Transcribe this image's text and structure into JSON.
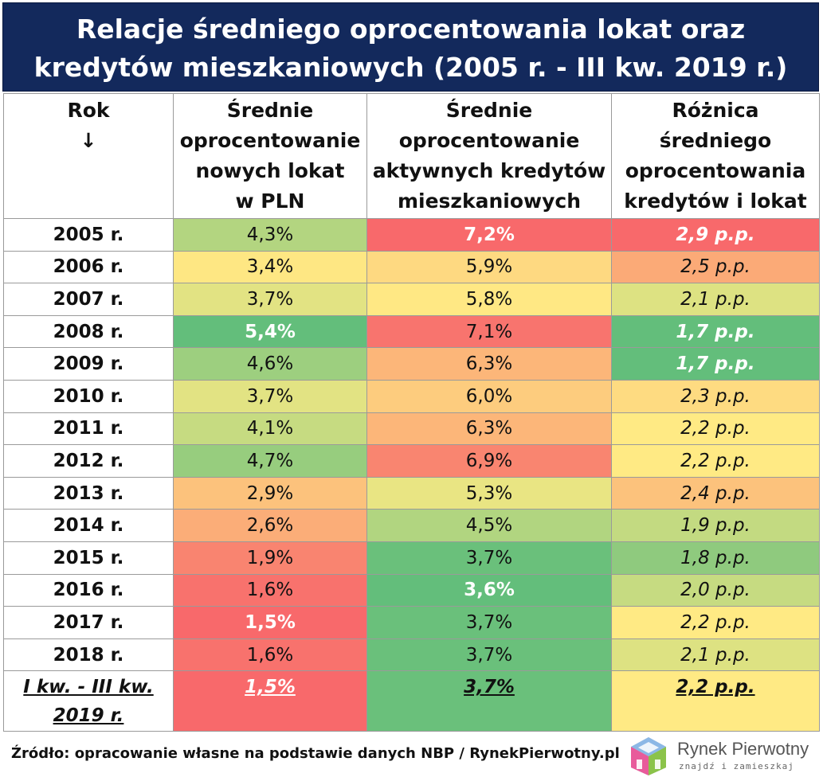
{
  "title": {
    "line1": "Relacje średniego oprocentowania lokat oraz",
    "line2": "kredytów mieszkaniowych (2005 r. - III kw. 2019 r.)"
  },
  "headers": {
    "col1_line1": "Rok",
    "col1_line2": "↓",
    "col2_line1": "Średnie",
    "col2_line2": "oprocentowanie",
    "col2_line3": "nowych lokat",
    "col2_line4": "w PLN",
    "col3_line1": "Średnie",
    "col3_line2": "oprocentowanie",
    "col3_line3": "aktywnych kredytów",
    "col3_line4": "mieszkaniowych",
    "col4_line1": "Różnica",
    "col4_line2": "średniego",
    "col4_line3": "oprocentowania",
    "col4_line4": "kredytów i lokat"
  },
  "chart_data": {
    "type": "table",
    "title": "Relacje średniego oprocentowania lokat oraz kredytów mieszkaniowych (2005 r. - III kw. 2019 r.)",
    "columns": [
      "Rok",
      "Średnie oprocentowanie nowych lokat w PLN",
      "Średnie oprocentowanie aktywnych kredytów mieszkaniowych",
      "Różnica średniego oprocentowania kredytów i lokat"
    ],
    "rows": [
      {
        "year": "2005 r.",
        "deposit": "4,3%",
        "credit": "7,2%",
        "diff": "2,9 p.p.",
        "deposit_color": "#b3d580",
        "credit_color": "#f8696b",
        "diff_color": "#f8696b",
        "deposit_strong": false,
        "credit_strong": true,
        "diff_strong": true
      },
      {
        "year": "2006 r.",
        "deposit": "3,4%",
        "credit": "5,9%",
        "diff": "2,5 p.p.",
        "deposit_color": "#fee783",
        "credit_color": "#fed981",
        "diff_color": "#fbaa77",
        "deposit_strong": false,
        "credit_strong": false,
        "diff_strong": false
      },
      {
        "year": "2007 r.",
        "deposit": "3,7%",
        "credit": "5,8%",
        "diff": "2,1 p.p.",
        "deposit_color": "#e2e383",
        "credit_color": "#ffe884",
        "diff_color": "#dde282",
        "deposit_strong": false,
        "credit_strong": false,
        "diff_strong": false
      },
      {
        "year": "2008 r.",
        "deposit": "5,4%",
        "credit": "7,1%",
        "diff": "1,7 p.p.",
        "deposit_color": "#63be7b",
        "credit_color": "#f8746e",
        "diff_color": "#63be7b",
        "deposit_strong": true,
        "credit_strong": false,
        "diff_strong": true
      },
      {
        "year": "2009 r.",
        "deposit": "4,6%",
        "credit": "6,3%",
        "diff": "1,7 p.p.",
        "deposit_color": "#9dcf7f",
        "credit_color": "#fcb679",
        "diff_color": "#63be7b",
        "deposit_strong": false,
        "credit_strong": false,
        "diff_strong": true
      },
      {
        "year": "2010 r.",
        "deposit": "3,7%",
        "credit": "6,0%",
        "diff": "2,3 p.p.",
        "deposit_color": "#e2e383",
        "credit_color": "#fdcc7e",
        "diff_color": "#fedb81",
        "deposit_strong": false,
        "credit_strong": false,
        "diff_strong": false
      },
      {
        "year": "2011 r.",
        "deposit": "4,1%",
        "credit": "6,3%",
        "diff": "2,2 p.p.",
        "deposit_color": "#c6db81",
        "credit_color": "#fcb679",
        "diff_color": "#ffea84",
        "deposit_strong": false,
        "credit_strong": false,
        "diff_strong": false
      },
      {
        "year": "2012 r.",
        "deposit": "4,7%",
        "credit": "6,9%",
        "diff": "2,2 p.p.",
        "deposit_color": "#97cd7e",
        "credit_color": "#f98570",
        "diff_color": "#ffea84",
        "deposit_strong": false,
        "credit_strong": false,
        "diff_strong": false
      },
      {
        "year": "2013 r.",
        "deposit": "2,9%",
        "credit": "5,3%",
        "diff": "2,4 p.p.",
        "deposit_color": "#fcc27c",
        "credit_color": "#e9e583",
        "diff_color": "#fcc27c",
        "deposit_strong": false,
        "credit_strong": false,
        "diff_strong": false
      },
      {
        "year": "2014 r.",
        "deposit": "2,6%",
        "credit": "4,5%",
        "diff": "1,9 p.p.",
        "deposit_color": "#fbad78",
        "credit_color": "#b1d580",
        "diff_color": "#c3da81",
        "deposit_strong": false,
        "credit_strong": false,
        "diff_strong": false
      },
      {
        "year": "2015 r.",
        "deposit": "1,9%",
        "credit": "3,7%",
        "diff": "1,8 p.p.",
        "deposit_color": "#f98470",
        "credit_color": "#6ac07b",
        "diff_color": "#8fca7e",
        "deposit_strong": false,
        "credit_strong": false,
        "diff_strong": false
      },
      {
        "year": "2016 r.",
        "deposit": "1,6%",
        "credit": "3,6%",
        "diff": "2,0 p.p.",
        "deposit_color": "#f8726d",
        "credit_color": "#63be7b",
        "diff_color": "#c6db81",
        "deposit_strong": false,
        "credit_strong": true,
        "diff_strong": false
      },
      {
        "year": "2017 r.",
        "deposit": "1,5%",
        "credit": "3,7%",
        "diff": "2,2 p.p.",
        "deposit_color": "#f8696b",
        "credit_color": "#6ac07b",
        "diff_color": "#ffea84",
        "deposit_strong": true,
        "credit_strong": false,
        "diff_strong": false
      },
      {
        "year": "2018 r.",
        "deposit": "1,6%",
        "credit": "3,7%",
        "diff": "2,1 p.p.",
        "deposit_color": "#f8726d",
        "credit_color": "#6ac07b",
        "diff_color": "#dde282",
        "deposit_strong": false,
        "credit_strong": false,
        "diff_strong": false
      }
    ],
    "summary": {
      "year_line1": "I kw. - III kw.",
      "year_line2": "2019 r.",
      "deposit": "1,5%",
      "credit": "3,7%",
      "diff": "2,2 p.p.",
      "deposit_color": "#f8696b",
      "credit_color": "#6ac07b",
      "diff_color": "#ffea84"
    }
  },
  "footer": {
    "source": "Źródło: opracowanie własne na podstawie danych NBP / RynekPierwotny.pl"
  },
  "logo": {
    "name": "Rynek Pierwotny",
    "tagline": "znajdź i zamieszkaj"
  }
}
